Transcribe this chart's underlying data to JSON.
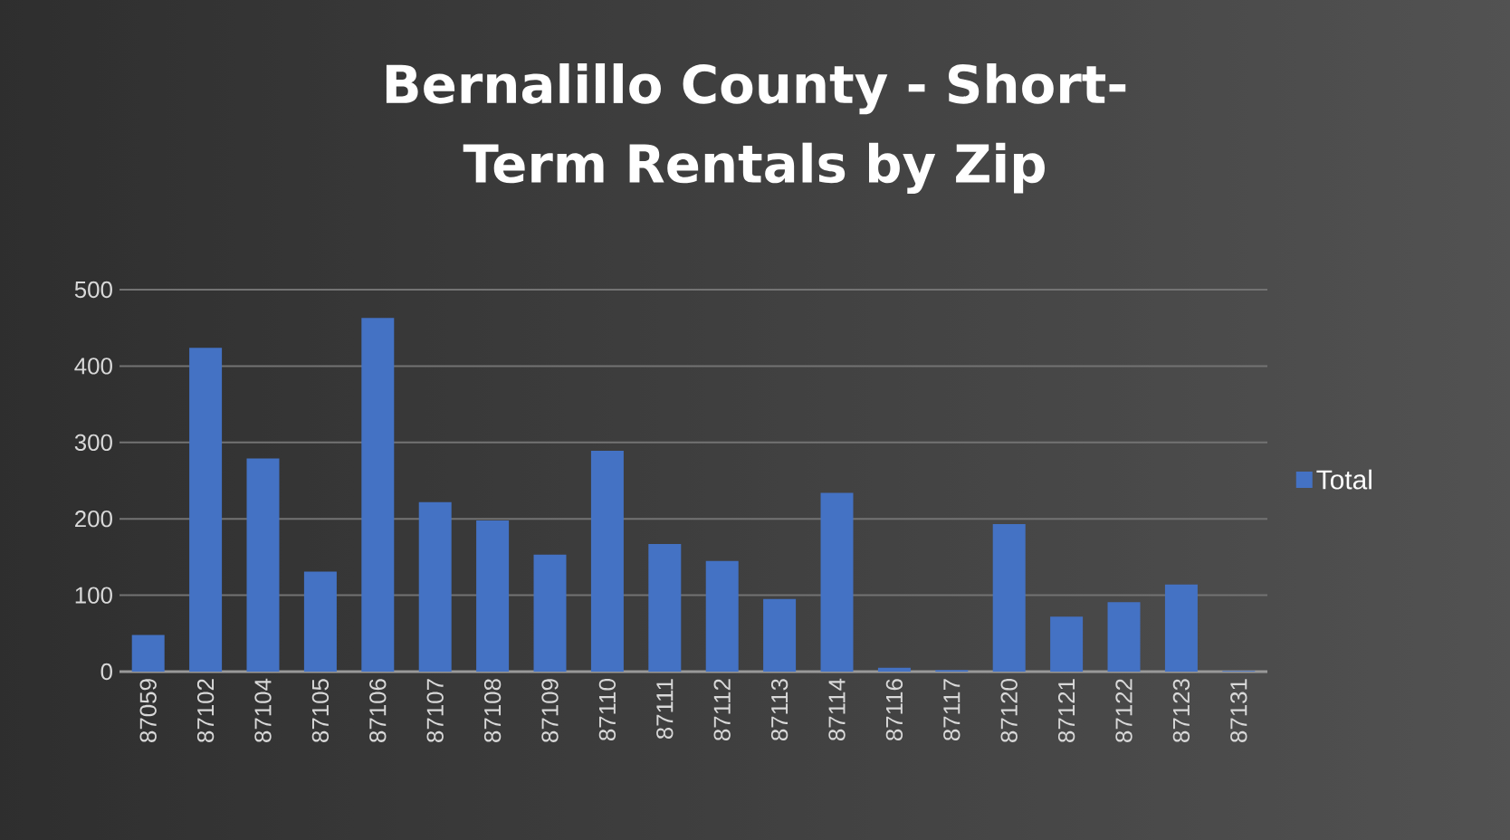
{
  "chart_data": {
    "type": "bar",
    "title": "Bernalillo County - Short-Term Rentals by Zip",
    "categories": [
      "87059",
      "87102",
      "87104",
      "87105",
      "87106",
      "87107",
      "87108",
      "87109",
      "87110",
      "87111",
      "87112",
      "87113",
      "87114",
      "87116",
      "87117",
      "87120",
      "87121",
      "87122",
      "87123",
      "87131"
    ],
    "series": [
      {
        "name": "Total",
        "color": "#4472c4",
        "values": [
          48,
          424,
          279,
          131,
          463,
          222,
          198,
          153,
          289,
          167,
          145,
          95,
          234,
          5,
          2,
          193,
          72,
          91,
          114,
          1
        ]
      }
    ],
    "ylim": [
      0,
      500
    ],
    "yticks": [
      0,
      100,
      200,
      300,
      400,
      500
    ],
    "grid": "y",
    "legend": "right"
  }
}
